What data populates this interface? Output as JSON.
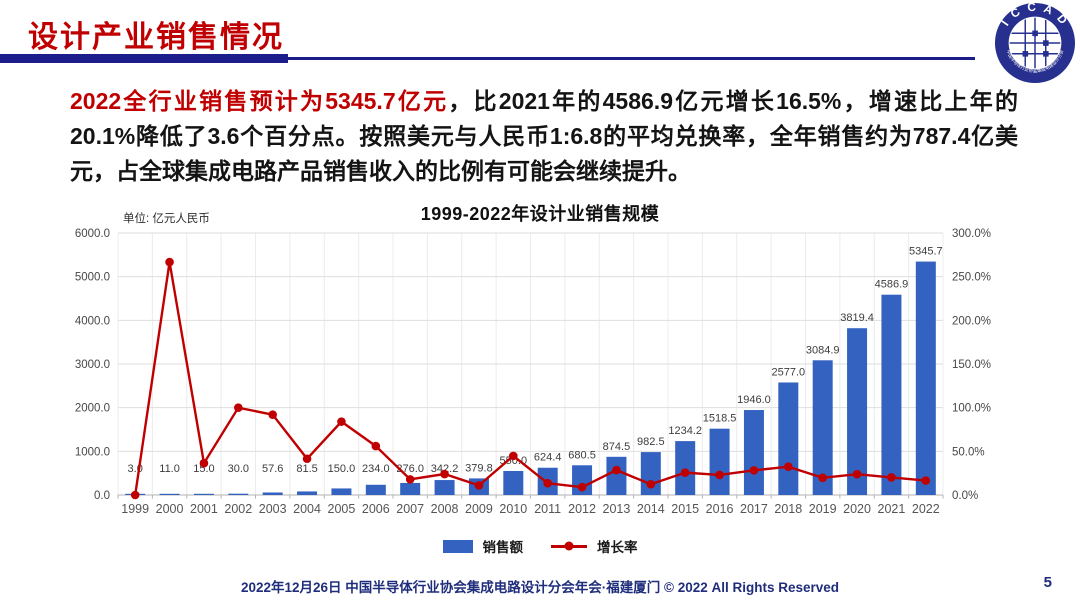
{
  "colors": {
    "accent_red": "#C00000",
    "navy": "#1C1C8A",
    "bar_blue": "#3362C1",
    "line_red": "#C00000",
    "footer_blue": "#1F2D7B"
  },
  "slide": {
    "title": "设计产业销售情况",
    "page_number": "5",
    "footer": "2022年12月26日 中国半导体行业协会集成电路设计分会年会·福建厦门 © 2022 All Rights Reserved",
    "logo_text": "I C C A D",
    "logo_subtext": "中国半导体行业协会集成电路设计分会"
  },
  "paragraph": {
    "highlight": "2022全行业销售预计为5345.7亿元",
    "rest": "，比2021年的4586.9亿元增长16.5%，增速比上年的20.1%降低了3.6个百分点。按照美元与人民币1:6.8的平均兑换率，全年销售约为787.4亿美元，占全球集成电路产品销售收入的比例有可能会继续提升。"
  },
  "chart_data": {
    "type": "bar+line",
    "title": "1999-2022年设计业销售规模",
    "unit_label": "单位: 亿元人民币",
    "grid": true,
    "legend_position": "bottom",
    "data_labels": true,
    "categories": [
      "1999",
      "2000",
      "2001",
      "2002",
      "2003",
      "2004",
      "2005",
      "2006",
      "2007",
      "2008",
      "2009",
      "2010",
      "2011",
      "2012",
      "2013",
      "2014",
      "2015",
      "2016",
      "2017",
      "2018",
      "2019",
      "2020",
      "2021",
      "2022"
    ],
    "series": [
      {
        "name": "销售额",
        "type": "bar",
        "axis": "left",
        "color": "#3362C1",
        "values": [
          3.0,
          11.0,
          15.0,
          30.0,
          57.6,
          81.5,
          150.0,
          234.0,
          276.0,
          342.2,
          379.8,
          550.0,
          624.4,
          680.5,
          874.5,
          982.5,
          1234.2,
          1518.5,
          1946.0,
          2577.0,
          3084.9,
          3819.4,
          4586.9,
          5345.7
        ]
      },
      {
        "name": "增长率",
        "type": "line",
        "axis": "right",
        "color": "#C00000",
        "values_pct": [
          0.0,
          266.7,
          36.4,
          100.0,
          92.0,
          41.5,
          84.0,
          56.0,
          17.9,
          24.0,
          11.0,
          44.8,
          13.5,
          9.0,
          28.5,
          12.3,
          25.6,
          23.0,
          28.2,
          32.4,
          19.7,
          23.8,
          20.1,
          16.5
        ]
      }
    ],
    "left_axis": {
      "min": 0,
      "max": 6000,
      "step": 1000,
      "labels": [
        "6000.0",
        "5000.0",
        "4000.0",
        "3000.0",
        "2000.0",
        "1000.0",
        "0.0"
      ]
    },
    "right_axis": {
      "min": 0,
      "max": 300,
      "step": 50,
      "labels": [
        "300.0%",
        "250.0%",
        "200.0%",
        "150.0%",
        "100.0%",
        "50.0%",
        "0.0%"
      ]
    }
  }
}
